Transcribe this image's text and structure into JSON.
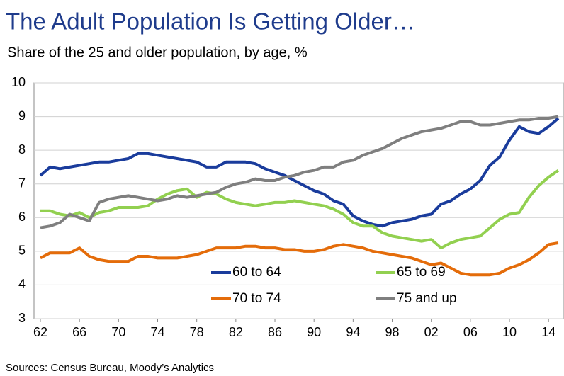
{
  "chart_data": {
    "type": "line",
    "title": "The Adult Population Is Getting Older…",
    "subtitle": "Share of the 25 and older population, by age, %",
    "source": "Sources: Census Bureau, Moody’s Analytics",
    "categories": [
      "62",
      null,
      null,
      null,
      "66",
      null,
      null,
      null,
      "70",
      null,
      null,
      null,
      "74",
      null,
      null,
      null,
      "78",
      null,
      null,
      null,
      "82",
      null,
      null,
      null,
      "86",
      null,
      null,
      null,
      "90",
      null,
      null,
      null,
      "94",
      null,
      null,
      null,
      "98",
      null,
      null,
      null,
      "02",
      null,
      null,
      null,
      "06",
      null,
      null,
      null,
      "10",
      null,
      null,
      null,
      "14",
      null
    ],
    "ylim": [
      3,
      10
    ],
    "yticks": [
      3,
      4,
      5,
      6,
      7,
      8,
      9,
      10
    ],
    "grid": true,
    "series": [
      {
        "name": "60 to 64",
        "color": "#1a3c9c",
        "values": [
          7.25,
          7.5,
          7.45,
          7.5,
          7.55,
          7.6,
          7.65,
          7.65,
          7.7,
          7.75,
          7.9,
          7.9,
          7.85,
          7.8,
          7.75,
          7.7,
          7.65,
          7.5,
          7.5,
          7.65,
          7.65,
          7.65,
          7.6,
          7.45,
          7.35,
          7.25,
          7.1,
          6.95,
          6.8,
          6.7,
          6.5,
          6.4,
          6.05,
          5.9,
          5.8,
          5.75,
          5.85,
          5.9,
          5.95,
          6.05,
          6.1,
          6.4,
          6.5,
          6.7,
          6.85,
          7.1,
          7.55,
          7.8,
          8.3,
          8.7,
          8.55,
          8.5,
          8.7,
          8.95
        ]
      },
      {
        "name": "65 to 69",
        "color": "#92d050",
        "values": [
          6.2,
          6.2,
          6.1,
          6.05,
          6.15,
          6.0,
          6.15,
          6.2,
          6.3,
          6.3,
          6.3,
          6.35,
          6.55,
          6.7,
          6.8,
          6.85,
          6.6,
          6.75,
          6.7,
          6.55,
          6.45,
          6.4,
          6.35,
          6.4,
          6.45,
          6.45,
          6.5,
          6.45,
          6.4,
          6.35,
          6.25,
          6.1,
          5.85,
          5.75,
          5.75,
          5.55,
          5.45,
          5.4,
          5.35,
          5.3,
          5.35,
          5.1,
          5.25,
          5.35,
          5.4,
          5.45,
          5.7,
          5.95,
          6.1,
          6.15,
          6.6,
          6.95,
          7.2,
          7.4
        ]
      },
      {
        "name": "70 to 74",
        "color": "#e46c0a",
        "values": [
          4.8,
          4.95,
          4.95,
          4.95,
          5.1,
          4.85,
          4.75,
          4.7,
          4.7,
          4.7,
          4.85,
          4.85,
          4.8,
          4.8,
          4.8,
          4.85,
          4.9,
          5.0,
          5.1,
          5.1,
          5.1,
          5.15,
          5.15,
          5.1,
          5.1,
          5.05,
          5.05,
          5.0,
          5.0,
          5.05,
          5.15,
          5.2,
          5.15,
          5.1,
          5.0,
          4.95,
          4.9,
          4.85,
          4.8,
          4.7,
          4.6,
          4.65,
          4.5,
          4.35,
          4.3,
          4.3,
          4.3,
          4.35,
          4.5,
          4.6,
          4.75,
          4.95,
          5.2,
          5.25
        ]
      },
      {
        "name": "75 and up",
        "color": "#7f7f7f",
        "values": [
          5.7,
          5.75,
          5.85,
          6.1,
          6.0,
          5.9,
          6.45,
          6.55,
          6.6,
          6.65,
          6.6,
          6.55,
          6.5,
          6.55,
          6.65,
          6.6,
          6.65,
          6.7,
          6.75,
          6.9,
          7.0,
          7.05,
          7.15,
          7.1,
          7.1,
          7.2,
          7.25,
          7.35,
          7.4,
          7.5,
          7.5,
          7.65,
          7.7,
          7.85,
          7.95,
          8.05,
          8.2,
          8.35,
          8.45,
          8.55,
          8.6,
          8.65,
          8.75,
          8.85,
          8.85,
          8.75,
          8.75,
          8.8,
          8.85,
          8.9,
          8.9,
          8.95,
          8.95,
          9.0
        ]
      }
    ]
  }
}
